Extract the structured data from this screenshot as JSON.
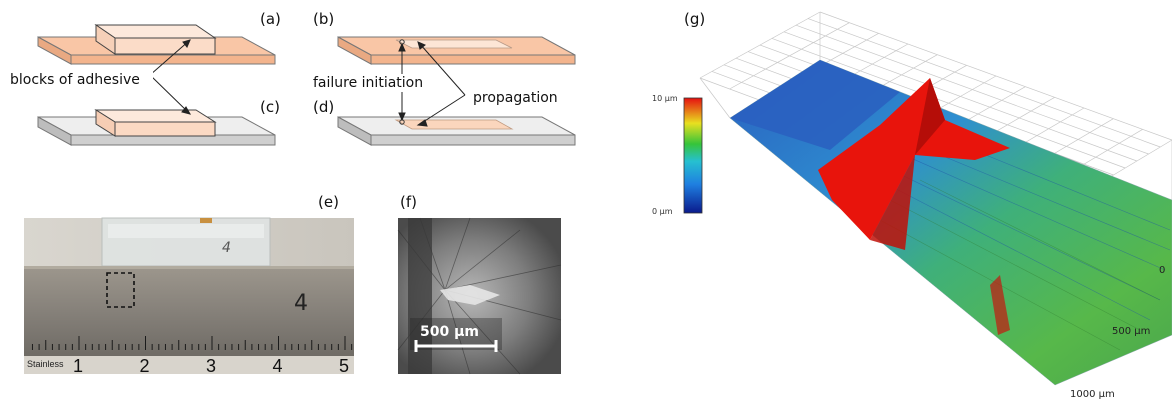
{
  "panel_labels": {
    "a": "(a)",
    "b": "(b)",
    "c": "(c)",
    "d": "(d)",
    "e": "(e)",
    "f": "(f)",
    "g": "(g)"
  },
  "annotations": {
    "blocks_of_adhesive": "blocks of adhesive",
    "failure_initiation": "failure initiation",
    "propagation": "propagation"
  },
  "ruler": {
    "brand": "Stainless",
    "numbers": [
      "1",
      "2",
      "3",
      "4",
      "5"
    ],
    "handwriting": "4"
  },
  "micrograph": {
    "scale_bar": "500 µm"
  },
  "colorbar": {
    "max": "10 µm",
    "min": "0 µm"
  },
  "surface_axis": {
    "ticks": [
      "0",
      "500 µm",
      "1000 µm"
    ]
  },
  "colors": {
    "adhesive": "#f9c6a6",
    "adhesive_light": "#fde6d6",
    "substrate_top": "#eeeeee",
    "substrate_side": "#c8c8c8",
    "ruler_metal": "#8f8a82",
    "surface_blue": "#2a5fc0",
    "surface_green": "#4caf50",
    "surface_red": "#e8140c"
  }
}
